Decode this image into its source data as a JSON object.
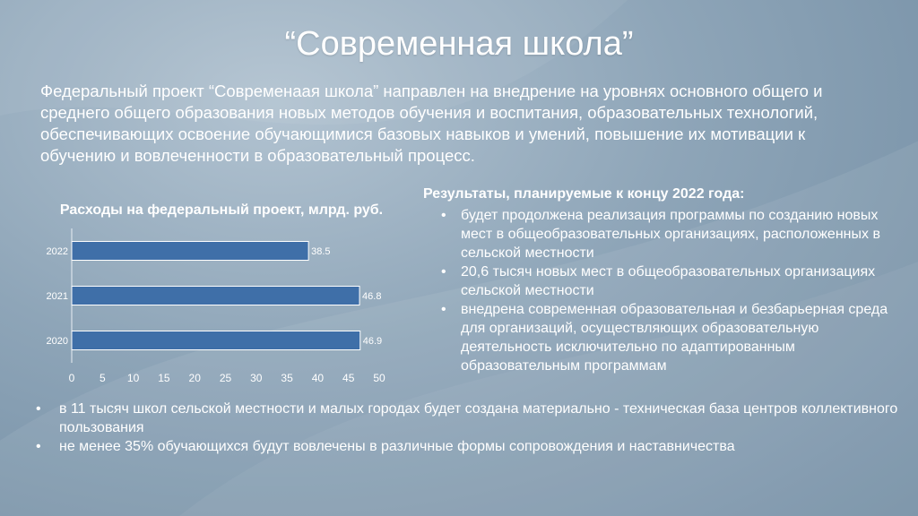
{
  "slide": {
    "title": "“Современная школа”",
    "intro": "Федеральный проект “Современаая школа” направлен на внедрение на уровнях основного общего и среднего общего образования новых методов обучения и воспитания, образовательных технологий, обеспечивающих освоение обучающимися базовых навыков и умений, повышение их мотивации к обучению и вовлеченности в образовательный процесс.",
    "results_title": "Результаты, планируемые к концу 2022 года:",
    "results": [
      "будет продолжена реализация программы по созданию новых мест в общеобразовательных организациях, расположенных в сельской местности",
      "20,6 тысяч новых мест в общеобразовательных организациях сельской местности",
      "внедрена современная образовательная и безбарьерная среда для организаций, осуществляющих образовательную деятельность исключительно по адаптированным образовательным программам"
    ],
    "bottom": [
      "в 11 тысяч школ сельской местности и малых городах будет создана материально - техническая база центров коллективного пользования",
      "не менее 35% обучающихся будут вовлечены в различные формы сопровождения и наставничества"
    ]
  },
  "chart_data": {
    "type": "bar",
    "orientation": "horizontal",
    "title": "Расходы на федеральный проект, млрд. руб.",
    "categories": [
      "2022",
      "2021",
      "2020"
    ],
    "values": [
      38.5,
      46.8,
      46.9
    ],
    "value_labels": [
      "38.5",
      "46.8",
      "46.9"
    ],
    "xlim": [
      0,
      50
    ],
    "xticks": [
      "0",
      "5",
      "10",
      "15",
      "20",
      "25",
      "30",
      "35",
      "40",
      "45",
      "50"
    ],
    "bar_color": "#3f6fa8",
    "grid": false,
    "legend": "none"
  }
}
